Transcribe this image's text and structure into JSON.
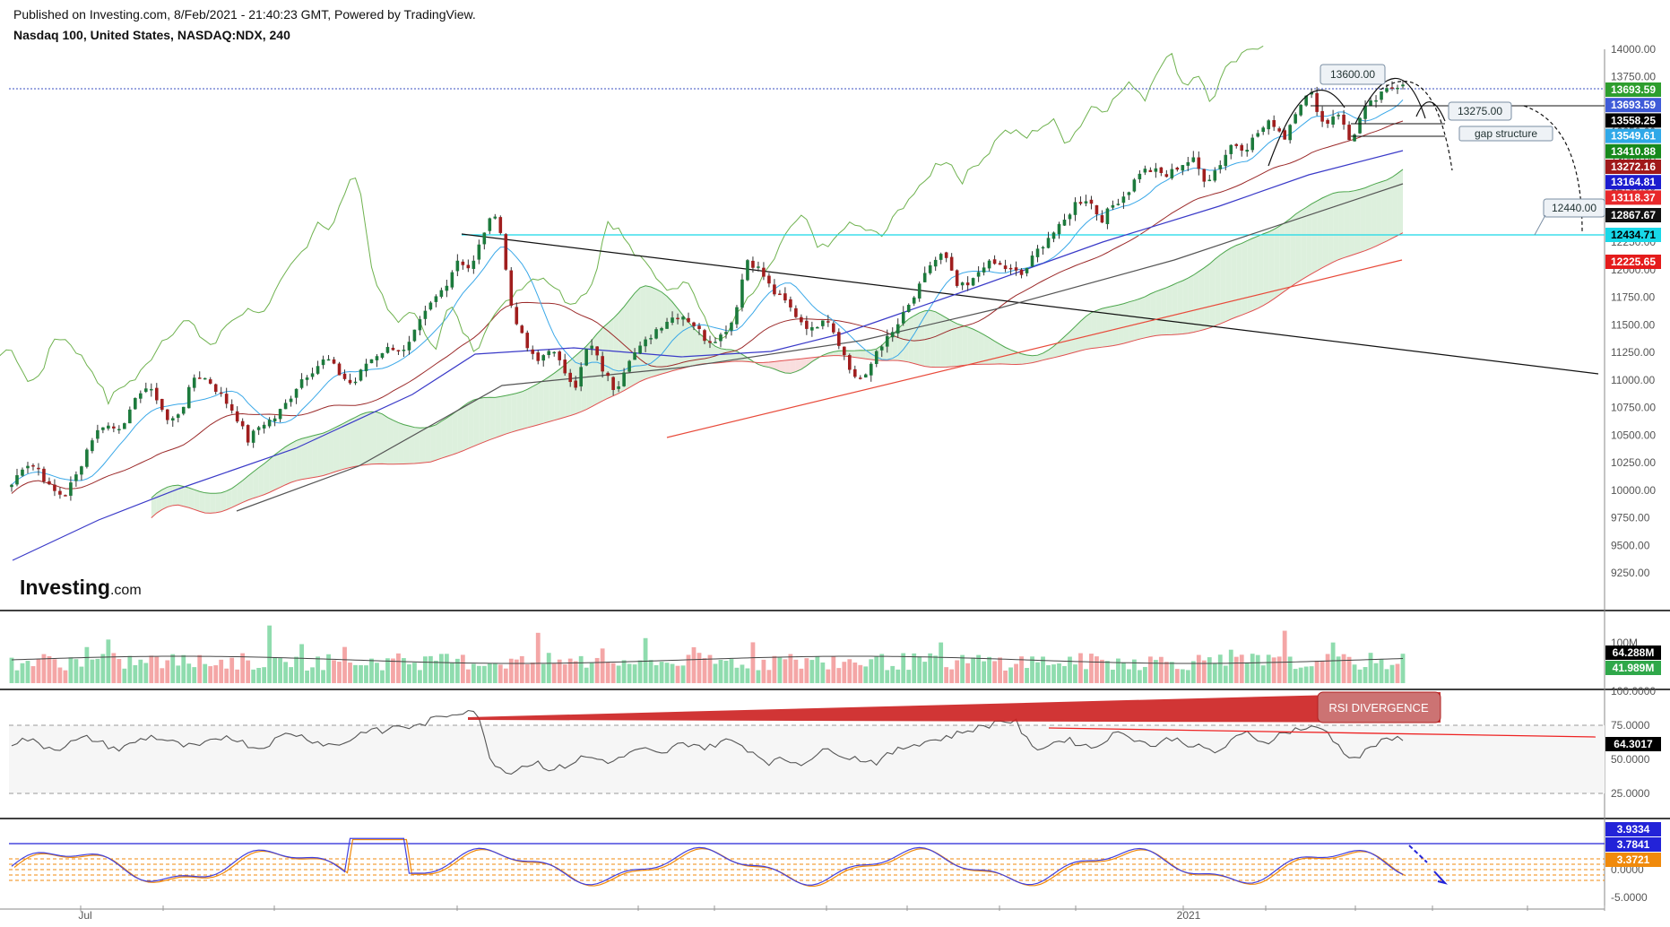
{
  "header": {
    "published": "Published on Investing.com, 8/Feb/2021 - 21:40:23 GMT, Powered by TradingView.",
    "instrument": "Nasdaq 100, United States, NASDAQ:NDX, 240"
  },
  "logo": {
    "bold": "Investing",
    "suffix": ".com"
  },
  "chart_data": {
    "type": "candlestick",
    "main": {
      "yticks": [
        9250,
        9500,
        9750,
        10000,
        10250,
        10500,
        10750,
        11000,
        11250,
        11500,
        11750,
        12000,
        12250,
        12500,
        12750,
        13000,
        13250,
        13500,
        13750,
        14000
      ],
      "ytick_labels": [
        "9250.00",
        "9500.00",
        "9750.00",
        "10000.00",
        "10250.00",
        "10500.00",
        "10750.00",
        "11000.00",
        "11250.00",
        "11500.00",
        "11750.00",
        "12000.00",
        "12250.00",
        "12500.00",
        "12750.00",
        "13000.00",
        "13250.00",
        "13500.00",
        "13750.00",
        "14000.00"
      ],
      "ylim": [
        9200,
        14050
      ],
      "close_path": [
        10050,
        10250,
        10200,
        10000,
        9950,
        10150,
        10450,
        10600,
        10550,
        10700,
        10950,
        10850,
        10600,
        10750,
        11050,
        11000,
        10850,
        10700,
        10450,
        10600,
        10650,
        10800,
        11000,
        11100,
        11200,
        11050,
        10950,
        11150,
        11250,
        11300,
        11250,
        11500,
        11700,
        11850,
        12100,
        12000,
        12350,
        12550,
        11700,
        11350,
        11150,
        11300,
        11100,
        10950,
        11350,
        11100,
        10900,
        11200,
        11300,
        11450,
        11550,
        11600,
        11500,
        11350,
        11400,
        11550,
        12100,
        12000,
        11800,
        11700,
        11550,
        11450,
        11600,
        11350,
        11050,
        11000,
        11300,
        11400,
        11600,
        11800,
        12050,
        12150,
        11850,
        11850,
        12050,
        12050,
        12000,
        11950,
        12150,
        12300,
        12400,
        12600,
        12650,
        12450,
        12600,
        12700,
        12900,
        12900,
        12850,
        12950,
        13000,
        12800,
        12950,
        13150,
        13100,
        13250,
        13350,
        13200,
        13500,
        13600,
        13300,
        13450,
        13150,
        13450,
        13550,
        13650,
        13700
      ]
    },
    "price_labels": [
      {
        "value": "13693.59",
        "bg": "#2e9e2e",
        "fg": "#ffffff"
      },
      {
        "value": "13693.59",
        "bg": "#3f5bd8",
        "fg": "#ffffff"
      },
      {
        "value": "13558.25",
        "bg": "#000000",
        "fg": "#ffffff"
      },
      {
        "value": "13549.61",
        "bg": "#2fa8e8",
        "fg": "#ffffff"
      },
      {
        "value": "13410.88",
        "bg": "#16891b",
        "fg": "#ffffff"
      },
      {
        "value": "13272.16",
        "bg": "#a0191a",
        "fg": "#ffffff"
      },
      {
        "value": "13164.81",
        "bg": "#1c1ccf",
        "fg": "#ffffff"
      },
      {
        "value": "13118.37",
        "bg": "#e8282a",
        "fg": "#ffffff"
      },
      {
        "value": "12867.67",
        "bg": "#111111",
        "fg": "#ffffff"
      },
      {
        "value": "12434.71",
        "bg": "#18d8e8",
        "fg": "#000000"
      },
      {
        "value": "12225.65",
        "bg": "#e41b1b",
        "fg": "#ffffff"
      }
    ],
    "annotations": {
      "level_1": "13600.00",
      "level_2": "13275.00",
      "level_3": "12440.00",
      "gap": "gap structure",
      "rsi_div": "RSI DIVERGENCE"
    },
    "volume": {
      "labels": [
        {
          "value": "64.288M",
          "bg": "#000000"
        },
        {
          "value": "41.989M",
          "bg": "#2fa84a"
        }
      ],
      "tick": "100M"
    },
    "rsi": {
      "yticks": [
        100,
        75,
        50,
        25
      ],
      "ytick_labels": [
        "100.0000",
        "75.0000",
        "50.0000",
        "25.0000"
      ],
      "last": "64.3017",
      "values": [
        62,
        65,
        60,
        58,
        63,
        66,
        61,
        57,
        63,
        67,
        64,
        60,
        59,
        63,
        68,
        62,
        58,
        64,
        70,
        66,
        62,
        60,
        65,
        72,
        70,
        75,
        73,
        78,
        82,
        85,
        87,
        50,
        40,
        45,
        48,
        42,
        46,
        52,
        50,
        48,
        55,
        57,
        53,
        60,
        62,
        58,
        64,
        62,
        55,
        48,
        50,
        47,
        53,
        58,
        52,
        50,
        48,
        55,
        60,
        63,
        65,
        68,
        72,
        74,
        79,
        77,
        58,
        60,
        65,
        62,
        58,
        67,
        70,
        63,
        60,
        66,
        62,
        58,
        55,
        64,
        70,
        62,
        68,
        72,
        73,
        72,
        57,
        50,
        60,
        64,
        66
      ]
    },
    "stoch": {
      "yticks": [
        0,
        -5
      ],
      "ytick_labels": [
        "0.0000",
        "-5.0000"
      ],
      "labels": [
        {
          "value": "3.9334",
          "bg": "#2323d8"
        },
        {
          "value": "3.7841",
          "bg": "#2323d8"
        },
        {
          "value": "3.3721",
          "bg": "#f08a0c"
        }
      ]
    },
    "xaxis": {
      "labels": [
        {
          "text": "Jul"
        },
        {
          "text": "2021"
        }
      ]
    }
  }
}
